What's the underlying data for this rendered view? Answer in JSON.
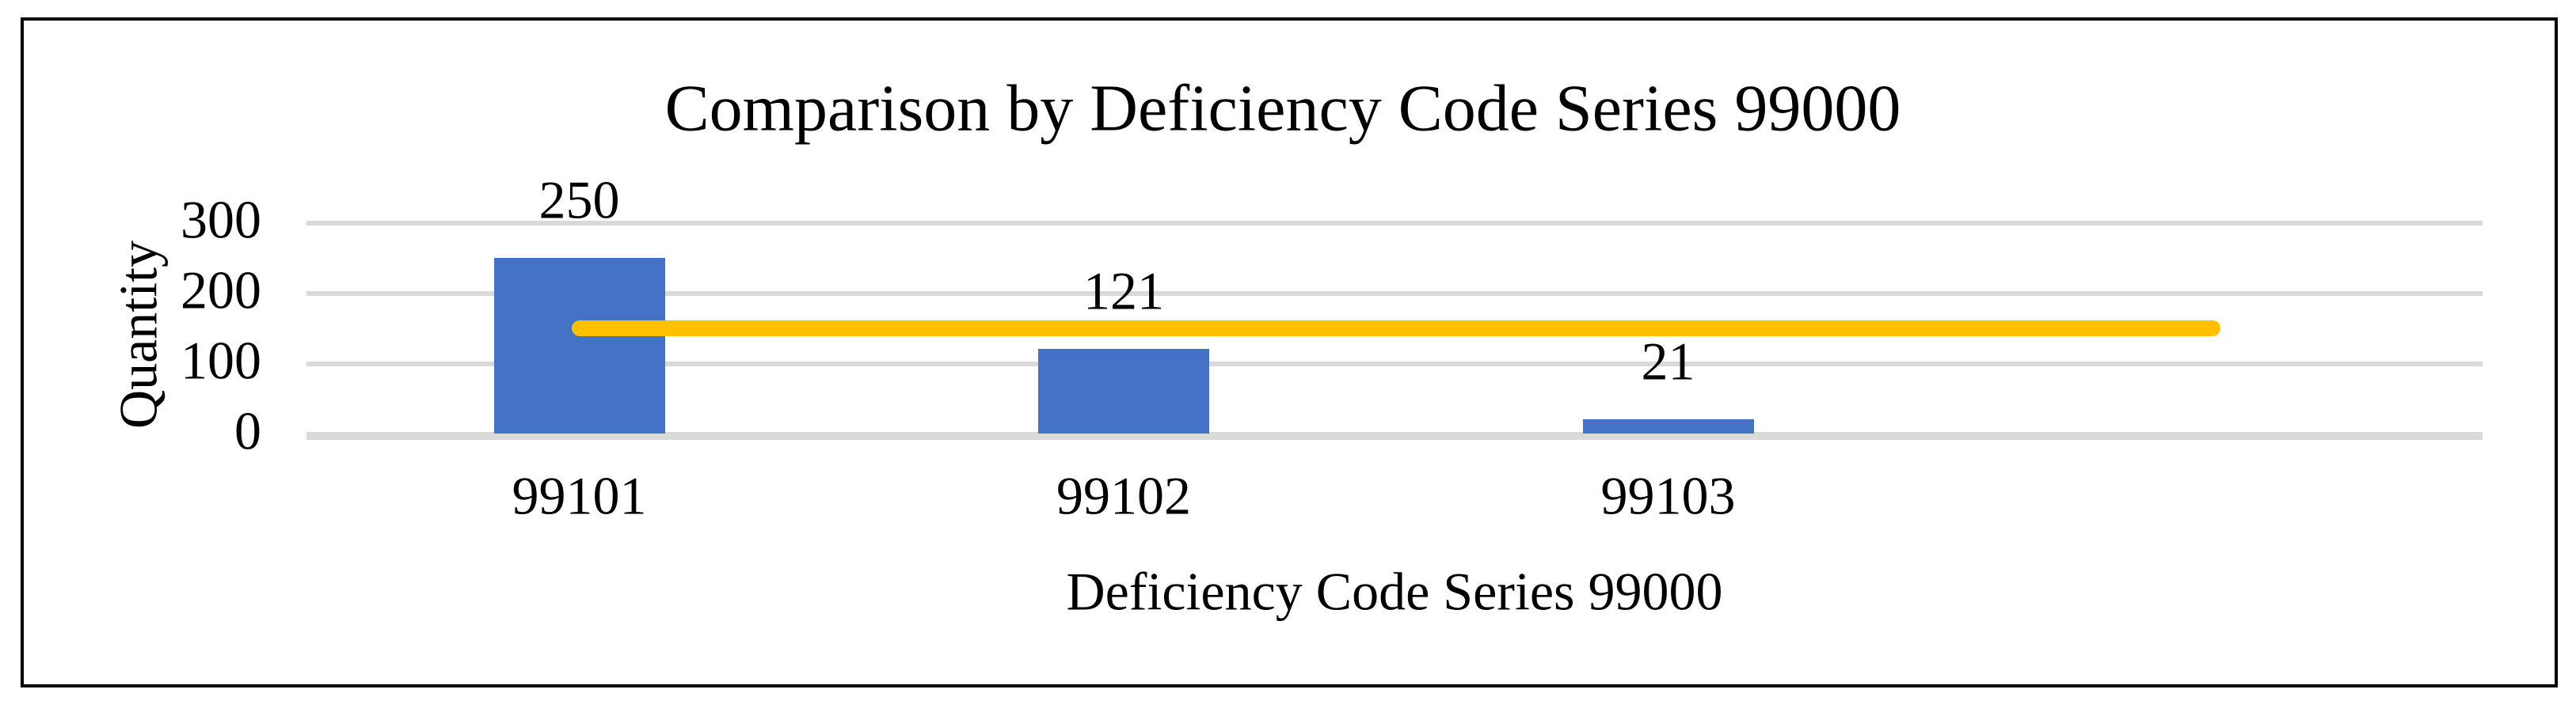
{
  "chart_data": {
    "type": "combo",
    "title": "Comparison by Deficiency Code Series 99000",
    "xlabel": "Deficiency Code Series 99000",
    "ylabel": "Quantity",
    "categories": [
      "99101",
      "99102",
      "99103"
    ],
    "num_category_slots": 4,
    "series": [
      {
        "type": "bar",
        "color": "#4472C4",
        "values": [
          250,
          121,
          21
        ],
        "data_labels": [
          "250",
          "121",
          "21"
        ]
      },
      {
        "type": "line",
        "color": "#FFC000",
        "value": 150,
        "start_category_index": 0,
        "end_category_index": 3
      }
    ],
    "yticks": [
      0,
      100,
      200,
      300
    ],
    "ylim": [
      0,
      300
    ],
    "grid": "horizontal",
    "legend": "none",
    "gridline_color": "#D9D9D9",
    "text_color": "#000000",
    "frame_color": "#000000",
    "background": "#FFFFFF"
  }
}
